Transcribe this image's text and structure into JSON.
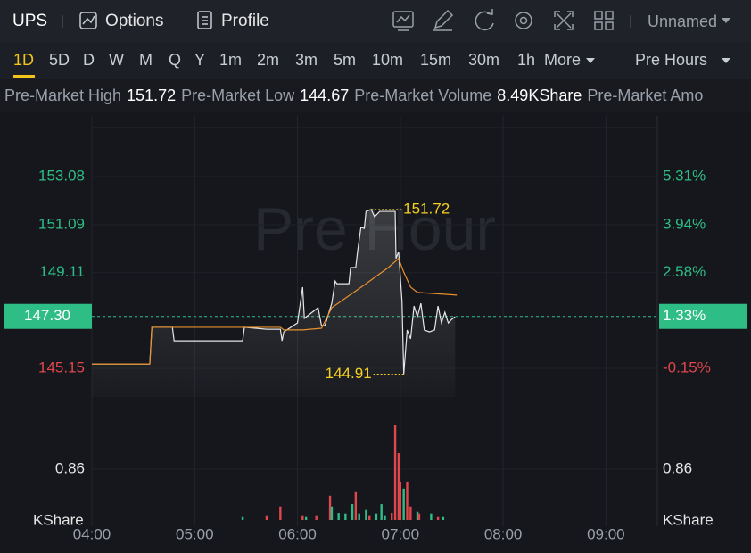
{
  "header": {
    "ticker": "UPS",
    "options": "Options",
    "profile": "Profile",
    "layout": "Unnamed"
  },
  "timeframes": {
    "items": [
      "1D",
      "5D",
      "D",
      "W",
      "M",
      "Q",
      "Y",
      "1m",
      "2m",
      "3m",
      "5m",
      "10m",
      "15m",
      "30m",
      "1h",
      "More"
    ],
    "session": "Pre Hours"
  },
  "stats": [
    {
      "label": "Pre-Market High",
      "value": "151.72"
    },
    {
      "label": "Pre-Market Low",
      "value": "144.67"
    },
    {
      "label": "Pre-Market Volume",
      "value": "8.49KShare"
    },
    {
      "label": "Pre-Market Amo"
    }
  ],
  "chart": {
    "type": "line",
    "watermark": "Pre Hour",
    "xlim": [
      240,
      570
    ],
    "xticks": [
      {
        "value": 240,
        "label": "04:00"
      },
      {
        "value": 300,
        "label": "05:00"
      },
      {
        "value": 360,
        "label": "06:00"
      },
      {
        "value": 420,
        "label": "07:00"
      },
      {
        "value": 480,
        "label": "08:00"
      },
      {
        "value": 540,
        "label": "09:00"
      }
    ],
    "ylim": [
      143.97,
      155.59
    ],
    "yticks": [
      153.08,
      151.09,
      149.11,
      {
        "value": 147.3,
        "label": "147.30"
      },
      145.15
    ],
    "right_labels": [
      "5.31%",
      "3.94%",
      "2.58%",
      "1.33%",
      "-0.15%"
    ],
    "last_price": 147.3,
    "up_color": "#2ebd85",
    "down_color": "#e0474c",
    "high": 151.72,
    "low": 144.91,
    "series": [
      {
        "color": "#e6e6e6",
        "x": [
          240,
          273.8,
          275,
          287,
          288,
          328,
          329,
          342,
          350,
          351,
          352,
          360,
          363,
          364,
          372,
          374,
          376,
          380,
          382,
          383,
          390,
          391,
          394,
          395,
          397,
          399,
          400,
          403,
          405,
          408,
          417,
          417.5,
          419,
          421,
          422,
          424,
          426,
          428,
          430,
          432,
          434,
          437,
          440,
          442,
          444,
          446,
          448,
          450,
          452
        ],
        "values": [
          145.33,
          145.33,
          146.85,
          146.85,
          146.29,
          146.29,
          146.85,
          146.77,
          146.77,
          146.29,
          146.66,
          147.03,
          148.51,
          147.22,
          147.66,
          146.92,
          146.92,
          147.84,
          148.76,
          148.65,
          148.65,
          149.32,
          149.32,
          149.95,
          150.98,
          150.94,
          151.64,
          151.72,
          151.42,
          151.64,
          151.64,
          149.69,
          149.98,
          147.93,
          144.91,
          146.74,
          146.37,
          147.73,
          147.29,
          147.84,
          146.74,
          146.66,
          146.74,
          147.73,
          147.03,
          147.47,
          147.03,
          147.18,
          147.29
        ]
      },
      {
        "color": "#e8902e",
        "x": [
          240,
          273.8,
          275,
          350,
          352,
          363,
          374,
          380,
          395,
          400,
          413,
          419,
          422,
          426,
          430,
          453
        ],
        "values": [
          145.33,
          145.33,
          146.85,
          146.85,
          146.74,
          146.74,
          146.81,
          147.66,
          148.4,
          148.65,
          149.32,
          149.69,
          149.13,
          148.51,
          148.29,
          148.18
        ]
      }
    ],
    "volume": {
      "unit": "KShare",
      "ylim": [
        0,
        2.08
      ],
      "yticks": [
        0.86
      ],
      "x": [
        328,
        342,
        350,
        363,
        365,
        371,
        379,
        380,
        384,
        388,
        392,
        394,
        396,
        400,
        402,
        406,
        409,
        411,
        415,
        417,
        419,
        420,
        422,
        424,
        426,
        430,
        431,
        438,
        442,
        445
      ],
      "values": [
        0.05,
        0.08,
        0.23,
        0.08,
        0.05,
        0.08,
        0.41,
        0.23,
        0.12,
        0.11,
        0.27,
        0.47,
        0.11,
        0.17,
        0.08,
        0.11,
        0.27,
        0.08,
        0.12,
        1.61,
        1.13,
        0.65,
        0.53,
        0.65,
        0.23,
        0.14,
        0.11,
        0.11,
        0.05,
        0.05
      ],
      "colors": [
        "#2ebd85",
        "#e0474c",
        "#e0474c",
        "#e0474c",
        "#2ebd85",
        "#e0474c",
        "#e0474c",
        "#2ebd85",
        "#2ebd85",
        "#2ebd85",
        "#2ebd85",
        "#e0474c",
        "#2ebd85",
        "#2ebd85",
        "#e0474c",
        "#2ebd85",
        "#2ebd85",
        "#2ebd85",
        "#e0474c",
        "#e0474c",
        "#e0474c",
        "#e0474c",
        "#2ebd85",
        "#e0474c",
        "#e0474c",
        "#2ebd85",
        "#e0474c",
        "#2ebd85",
        "#e0474c",
        "#2ebd85"
      ]
    }
  }
}
